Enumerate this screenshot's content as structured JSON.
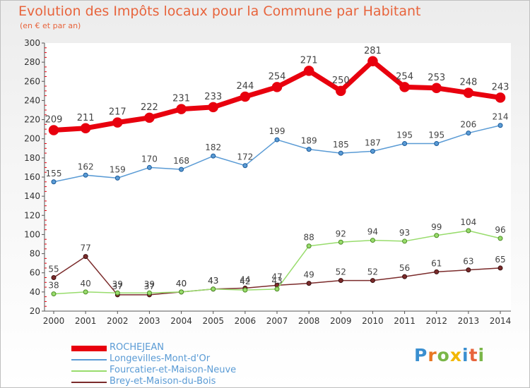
{
  "header": {
    "title": "Evolution des Impôts locaux pour la Commune par Habitant",
    "subtitle": "(en € et par an)"
  },
  "logo": {
    "text": "Proxiti",
    "colors": [
      "#3a8fd0",
      "#e87722",
      "#7ab648",
      "#f2b705",
      "#3a8fd0",
      "#e8643c",
      "#7ab648"
    ]
  },
  "chart_data": {
    "type": "line",
    "x": [
      "2000",
      "2001",
      "2002",
      "2003",
      "2004",
      "2005",
      "2006",
      "2007",
      "2008",
      "2009",
      "2010",
      "2011",
      "2012",
      "2013",
      "2014"
    ],
    "ylim": [
      20,
      300
    ],
    "yticks": [
      20,
      40,
      60,
      80,
      100,
      120,
      140,
      160,
      180,
      200,
      220,
      240,
      260,
      280,
      300
    ],
    "grid": "vertical minor ticks only",
    "legend_position": "bottom-left",
    "series": [
      {
        "name": "ROCHEJEAN",
        "color": "#e8000e",
        "values": [
          209,
          211,
          217,
          222,
          231,
          233,
          244,
          254,
          271,
          250,
          281,
          254,
          253,
          248,
          243
        ]
      },
      {
        "name": "Longevilles-Mont-d'Or",
        "color": "#5a9bd5",
        "values": [
          155,
          162,
          159,
          170,
          168,
          182,
          172,
          199,
          189,
          185,
          187,
          195,
          195,
          206,
          214
        ]
      },
      {
        "name": "Fourcatier-et-Maison-Neuve",
        "color": "#98dc6c",
        "values": [
          38,
          40,
          39,
          39,
          40,
          43,
          42,
          43,
          88,
          92,
          94,
          93,
          99,
          104,
          96
        ]
      },
      {
        "name": "Brey-et-Maison-du-Bois",
        "color": "#7b2b2b",
        "values": [
          55,
          77,
          37,
          37,
          40,
          43,
          44,
          47,
          49,
          52,
          52,
          56,
          61,
          63,
          65
        ]
      }
    ]
  }
}
